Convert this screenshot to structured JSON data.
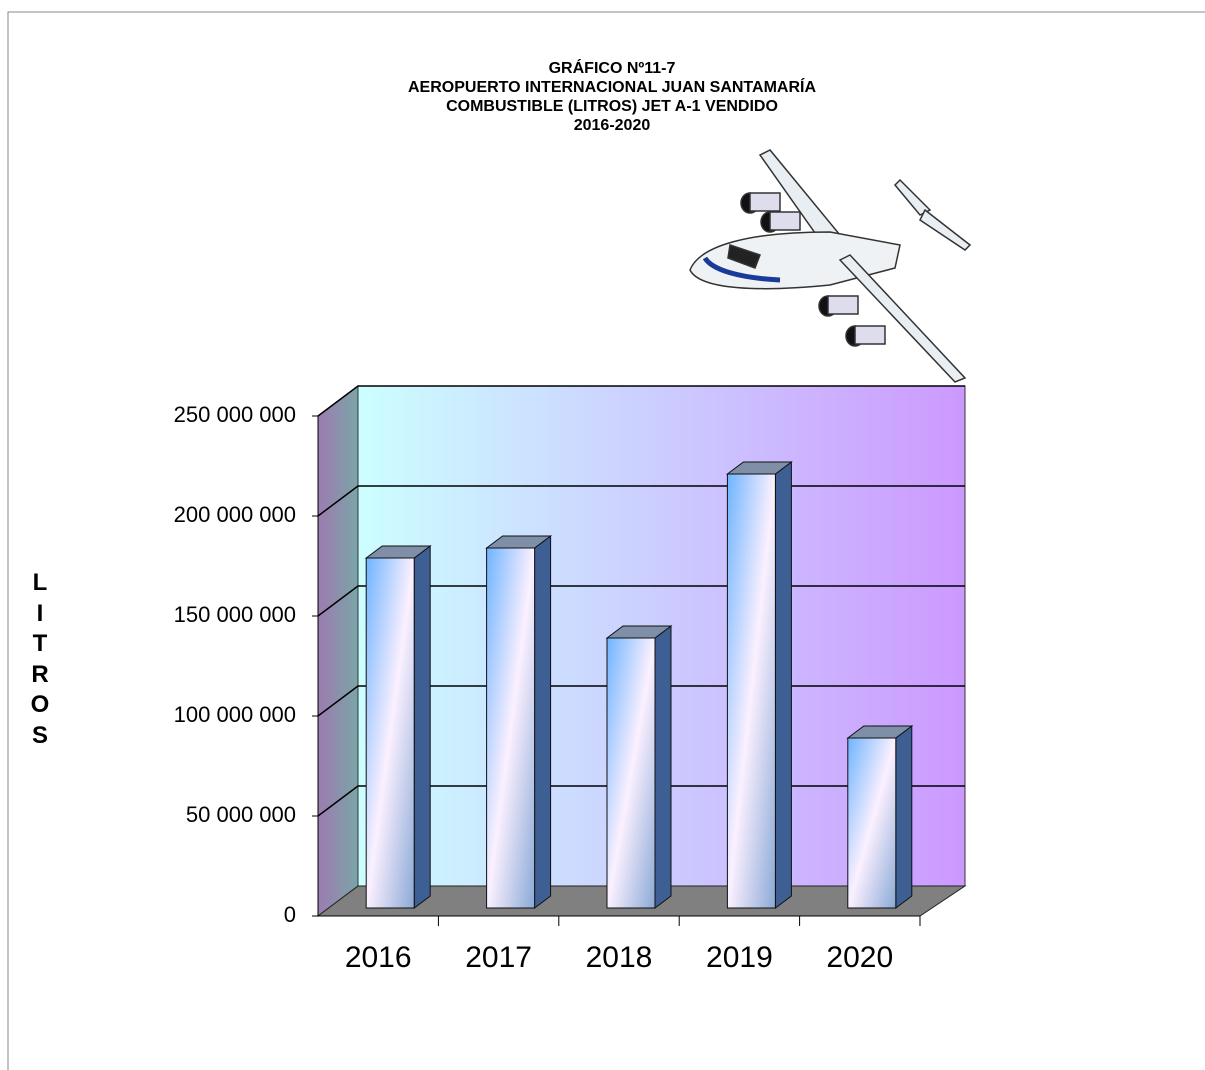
{
  "chart_data": {
    "type": "bar3d",
    "title": [
      "GRÁFICO Nº11-7",
      "AEROPUERTO INTERNACIONAL JUAN SANTAMARÍA",
      "COMBUSTIBLE (LITROS) JET A-1 VENDIDO",
      "2016-2020"
    ],
    "y_label": "LITROS",
    "categories": [
      "2016",
      "2017",
      "2018",
      "2019",
      "2020"
    ],
    "values": [
      175000000,
      180000000,
      135000000,
      217000000,
      85000000
    ],
    "ylim": [
      0,
      250000000
    ],
    "yticks": [
      0,
      {
        "value": 50000000,
        "label": "50 000 000"
      },
      {
        "value": 100000000,
        "label": "100 000 000"
      },
      {
        "value": 150000000,
        "label": "150 000 000"
      },
      {
        "value": 200000000,
        "label": "200 000 000"
      },
      {
        "value": 250000000,
        "label": "250 000 000"
      }
    ],
    "grid": true
  }
}
